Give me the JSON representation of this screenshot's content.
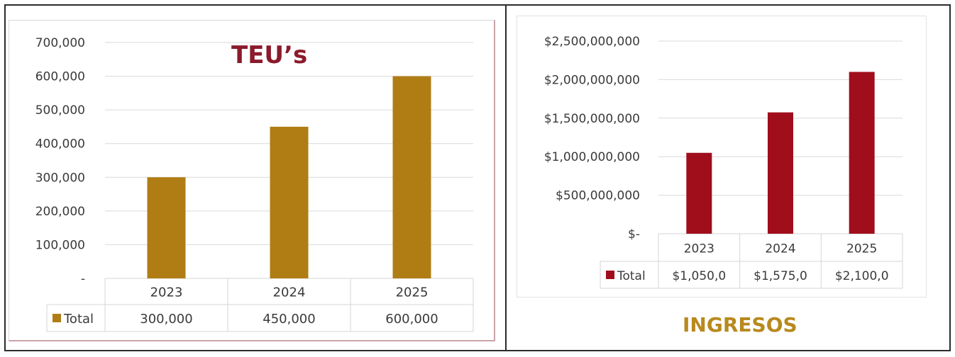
{
  "chart_data": [
    {
      "type": "bar",
      "title": "TEU’s",
      "categories": [
        "2023",
        "2024",
        "2025"
      ],
      "series": [
        {
          "name": "Total",
          "values": [
            300000,
            450000,
            600000
          ]
        }
      ],
      "ylim": [
        0,
        700000
      ],
      "y_ticks": [
        "-",
        "100,000",
        "200,000",
        "300,000",
        "400,000",
        "500,000",
        "600,000",
        "700,000"
      ],
      "table_values": [
        "300,000",
        "450,000",
        "600,000"
      ],
      "legend_label": "Total",
      "color": "#b07d14",
      "grid": true,
      "legend_position": "data-table"
    },
    {
      "type": "bar",
      "title": "INGRESOS",
      "categories": [
        "2023",
        "2024",
        "2025"
      ],
      "series": [
        {
          "name": "Total",
          "values": [
            1050000000,
            1575000000,
            2100000000
          ]
        }
      ],
      "ylim": [
        0,
        2500000000
      ],
      "y_ticks": [
        "$-",
        "$500,000,000",
        "$1,000,000,000",
        "$1,500,000,000",
        "$2,000,000,000",
        "$2,500,000,000"
      ],
      "table_values": [
        "$1,050,0",
        "$1,575,0",
        "$2,100,0"
      ],
      "legend_label": "Total",
      "color": "#a00e1c",
      "grid": true,
      "legend_position": "data-table"
    }
  ],
  "colors": {
    "teu_title": "#8b1a2b",
    "ingresos_title": "#b8891e",
    "grid": "#d9d9d9"
  }
}
